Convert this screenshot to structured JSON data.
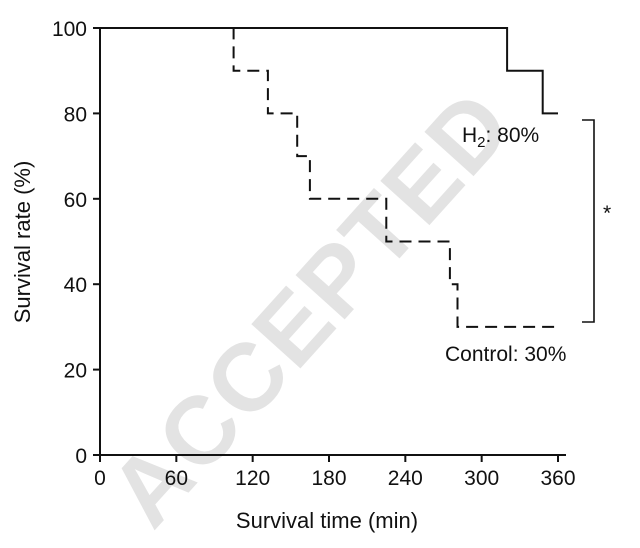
{
  "chart_data": {
    "type": "line",
    "xlabel": "Survival time (min)",
    "ylabel": "Survival rate (%)",
    "xlim": [
      0,
      360
    ],
    "ylim": [
      0,
      100
    ],
    "xticks": [
      "0",
      "60",
      "120",
      "180",
      "240",
      "300",
      "360"
    ],
    "yticks": [
      "0",
      "20",
      "40",
      "60",
      "80",
      "100"
    ],
    "series": [
      {
        "key": "h2",
        "style": "solid",
        "color": "#111111",
        "points": [
          [
            0,
            100
          ],
          [
            320,
            100
          ],
          [
            320,
            90
          ],
          [
            348,
            90
          ],
          [
            348,
            80
          ],
          [
            360,
            80
          ]
        ]
      },
      {
        "key": "control",
        "style": "dashed",
        "color": "#111111",
        "points": [
          [
            0,
            100
          ],
          [
            105,
            100
          ],
          [
            105,
            90
          ],
          [
            132,
            90
          ],
          [
            132,
            80
          ],
          [
            155,
            80
          ],
          [
            155,
            70
          ],
          [
            165,
            70
          ],
          [
            165,
            60
          ],
          [
            225,
            60
          ],
          [
            225,
            50
          ],
          [
            275,
            50
          ],
          [
            275,
            40
          ],
          [
            281,
            40
          ],
          [
            281,
            30
          ],
          [
            357,
            30
          ]
        ]
      }
    ],
    "annotations": {
      "h2_label": "H",
      "h2_sub": "2",
      "h2_value": ": 80%",
      "control_label": "Control: 30%",
      "significance": "*"
    },
    "grid": false,
    "legend": "none"
  },
  "watermark": {
    "text": "ACCEPTED"
  }
}
